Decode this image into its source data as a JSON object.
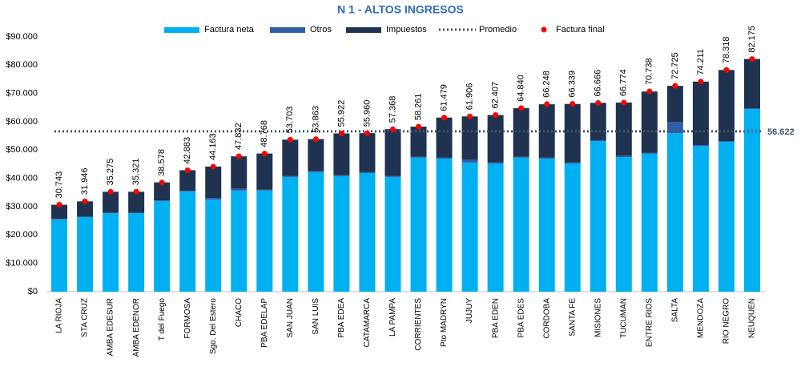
{
  "chart_data": {
    "type": "stacked-bar",
    "title": "N 1 - ALTOS INGRESOS",
    "categories": [
      "LA RIOJA",
      "STA CRUZ",
      "AMBA EDESUR",
      "AMBA EDENOR",
      "T del Fuego",
      "FORMOSA",
      "Sgo. Del Estero",
      "CHACO",
      "PBA EDELAP",
      "SAN JUAN",
      "SAN LUIS",
      "PBA EDEA",
      "CATAMARCA",
      "LA PAMPA",
      "CORRIENTES",
      "Pto MADRYN",
      "JUJUY",
      "PBA EDEN",
      "PBA EDES",
      "CORDOBA",
      "SANTA FE",
      "MISIONES",
      "TUCUMAN",
      "ENTRE RIOS",
      "SALTA",
      "MENDOZA",
      "RIO NEGRO",
      "NEUQUEN"
    ],
    "series": [
      {
        "name": "Factura neta",
        "color": "#00b0f0",
        "values": [
          25500,
          26300,
          27700,
          27700,
          32000,
          35400,
          32500,
          35700,
          35700,
          40500,
          42200,
          40800,
          41900,
          40500,
          47300,
          47000,
          45600,
          45300,
          47300,
          47000,
          45300,
          53200,
          47500,
          48700,
          56000,
          51500,
          52900,
          64500
        ]
      },
      {
        "name": "Otros",
        "color": "#2e5ea8",
        "values": [
          200,
          200,
          200,
          200,
          200,
          200,
          600,
          700,
          300,
          300,
          300,
          300,
          300,
          300,
          300,
          300,
          1000,
          300,
          300,
          300,
          300,
          300,
          600,
          300,
          4000,
          300,
          300,
          300
        ]
      },
      {
        "name": "Impuestos",
        "color": "#1f3350",
        "values": [
          5000,
          5400,
          7400,
          7400,
          6400,
          7300,
          11100,
          11400,
          12800,
          12900,
          11400,
          14800,
          13800,
          16600,
          10700,
          14200,
          15300,
          16800,
          17200,
          18900,
          20700,
          13200,
          18700,
          21700,
          12700,
          22400,
          25100,
          17400
        ]
      }
    ],
    "final": {
      "name": "Factura final",
      "color": "#ff0000",
      "values": [
        30743,
        31946,
        35275,
        35321,
        38578,
        42883,
        44163,
        47832,
        48768,
        53703,
        53863,
        55922,
        55960,
        57368,
        58261,
        61479,
        61906,
        62407,
        64840,
        66248,
        66339,
        66666,
        66774,
        70738,
        72725,
        74211,
        78318,
        82175
      ],
      "value_labels": [
        "30.743",
        "31.946",
        "35.275",
        "35.321",
        "38.578",
        "42.883",
        "44.163",
        "47.832",
        "48.768",
        "53.703",
        "53.863",
        "55.922",
        "55.960",
        "57.368",
        "58.261",
        "61.479",
        "61.906",
        "62.407",
        "64.840",
        "66.248",
        "66.339",
        "66.666",
        "66.774",
        "70.738",
        "72.725",
        "74.211",
        "78.318",
        "82.175"
      ]
    },
    "average": {
      "name": "Promedio",
      "color": "#44546a",
      "value": 56622,
      "label": "56.622"
    },
    "ylim": [
      0,
      90000
    ],
    "yticks": [
      {
        "value": 0,
        "label": "$0"
      },
      {
        "value": 10000,
        "label": "$10.000"
      },
      {
        "value": 20000,
        "label": "$20.000"
      },
      {
        "value": 30000,
        "label": "$30.000"
      },
      {
        "value": 40000,
        "label": "$40.000"
      },
      {
        "value": 50000,
        "label": "$50.000"
      },
      {
        "value": 60000,
        "label": "$60.000"
      },
      {
        "value": 70000,
        "label": "$70.000"
      },
      {
        "value": 80000,
        "label": "$80.000"
      },
      {
        "value": 90000,
        "label": "$90.000"
      }
    ],
    "grid": false
  }
}
